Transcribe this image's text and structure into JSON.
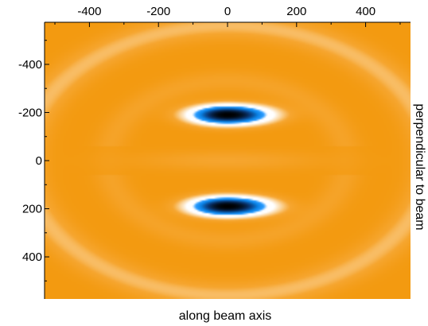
{
  "chart_data": {
    "type": "heatmap",
    "title": "",
    "xlabel": "along beam axis",
    "ylabel": "perpendicular to beam",
    "xlim": [
      -530,
      530
    ],
    "ylim": [
      -575,
      575
    ],
    "y_inverted": true,
    "x_ticks": [
      "-400",
      "-200",
      "0",
      "200",
      "400"
    ],
    "x_tick_values": [
      -400,
      -200,
      0,
      200,
      400
    ],
    "y_ticks": [
      "-400",
      "-200",
      "0",
      "200",
      "400"
    ],
    "y_tick_values": [
      -400,
      -200,
      0,
      200,
      400
    ],
    "x_axis_position": "top",
    "y_label_position": "right",
    "grid": false,
    "colormap": [
      "#000000",
      "#0a84e8",
      "#ffffff",
      "#f8a020"
    ],
    "features": [
      {
        "kind": "minimum",
        "x": 0,
        "y": -190,
        "level": "lowest"
      },
      {
        "kind": "minimum",
        "x": 0,
        "y": 190,
        "level": "lowest"
      }
    ]
  }
}
